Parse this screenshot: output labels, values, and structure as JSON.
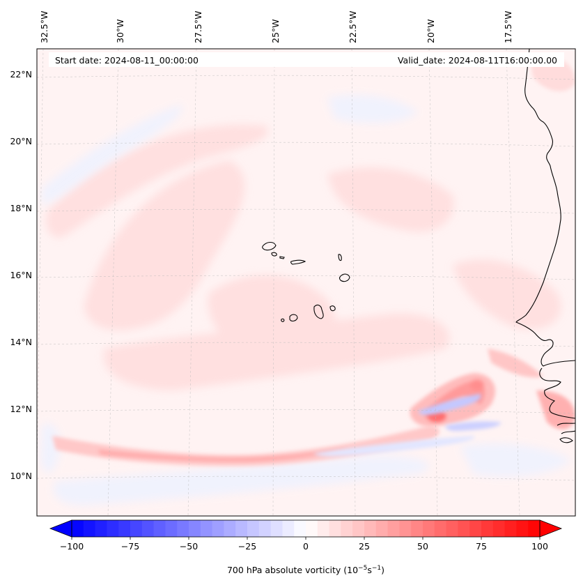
{
  "map": {
    "start_date_label": "Start date: 2024-08-11_00:00:00",
    "valid_date_label": "Valid_date: 2024-08-11T16:00:00.00",
    "field": "700 hPa absolute vorticity",
    "lon_ticks": [
      "32.5°W",
      "30°W",
      "27.5°W",
      "25°W",
      "22.5°W",
      "20°W",
      "17.5°W"
    ],
    "lon_values": [
      -32.5,
      -30,
      -27.5,
      -25,
      -22.5,
      -20,
      -17.5
    ],
    "lat_ticks": [
      "22°N",
      "20°N",
      "18°N",
      "16°N",
      "14°N",
      "12°N",
      "10°N"
    ],
    "lat_values": [
      22,
      20,
      18,
      16,
      14,
      12,
      10
    ],
    "extent": {
      "lon_min": -32.6,
      "lon_max": -16.4,
      "lat_min": 9.0,
      "lat_max": 22.8
    }
  },
  "colorbar": {
    "label_prefix": "700 hPa absolute vorticity (10",
    "label_exp1": "−5",
    "label_mid": "s",
    "label_exp2": "−1",
    "label_suffix": ")",
    "ticks": [
      "−100",
      "−75",
      "−50",
      "−25",
      "0",
      "25",
      "50",
      "75",
      "100"
    ],
    "tick_values": [
      -100,
      -75,
      -50,
      -25,
      0,
      25,
      50,
      75,
      100
    ],
    "range": [
      -100,
      100
    ],
    "levels": 40,
    "extend": "both",
    "cmap": "bwr",
    "colors": {
      "min": "#0000ff",
      "mid": "#ffffff",
      "max": "#ff0000"
    }
  },
  "features": {
    "vorticity_features": [
      {
        "name": "ITCZ positive vorticity band",
        "sign": "positive",
        "peak": 30
      },
      {
        "name": "easterly wave vortex",
        "sign": "positive",
        "peak": 85
      },
      {
        "name": "negative vorticity streak",
        "sign": "negative",
        "peak": -30
      },
      {
        "name": "broad positive background",
        "sign": "positive",
        "peak": 12
      }
    ]
  }
}
